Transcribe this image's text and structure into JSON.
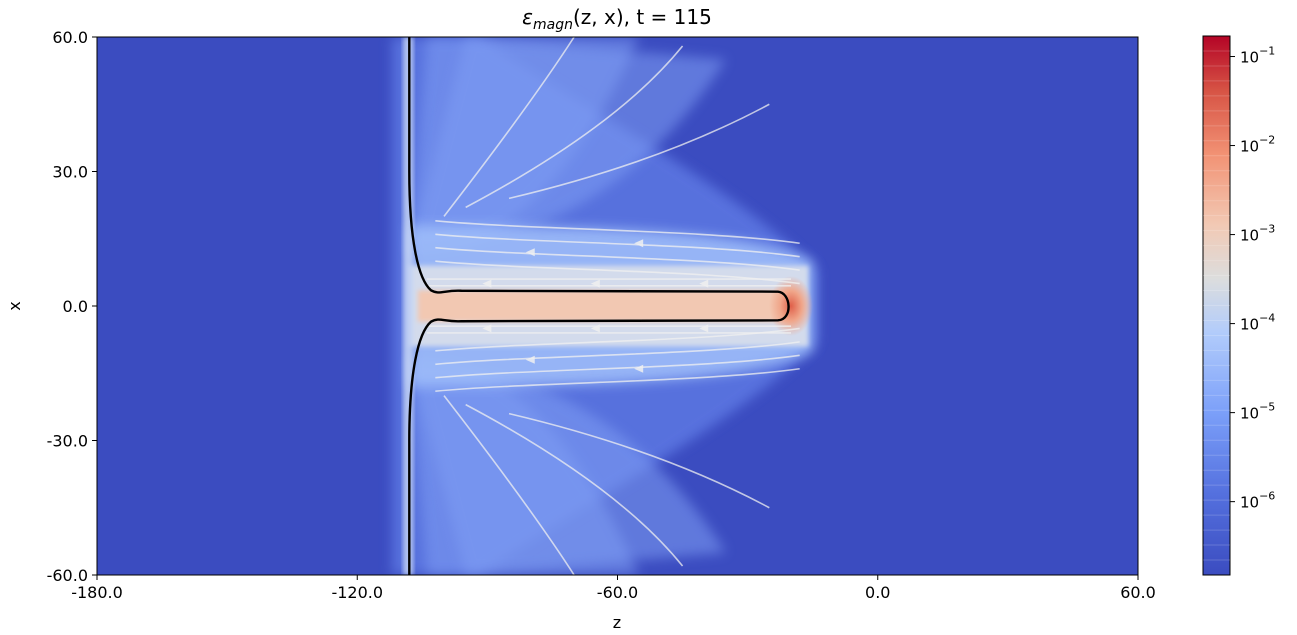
{
  "chart_data": {
    "type": "heatmap",
    "title_parts": {
      "symbol": "ε",
      "subscript": "magn",
      "args": "(z, x), t = 115"
    },
    "xlabel": "z",
    "ylabel": "x",
    "xlim": [
      -180,
      60
    ],
    "ylim": [
      -60,
      60
    ],
    "xticks": [
      -180,
      -120,
      -60,
      0,
      60
    ],
    "xtick_labels": [
      "-180.0",
      "-120.0",
      "-60.0",
      "0.0",
      "60.0"
    ],
    "yticks": [
      -60,
      -30,
      0,
      30,
      60
    ],
    "ytick_labels": [
      "-60.0",
      "-30.0",
      "0.0",
      "30.0",
      "60.0"
    ],
    "colormap": "coolwarm",
    "colorbar": {
      "scale": "log",
      "range": [
        1.5e-07,
        0.17
      ],
      "ticks": [
        1e-06,
        1e-05,
        0.0001,
        0.001,
        0.01,
        0.1
      ],
      "tick_base": "10",
      "tick_exponents": [
        "−6",
        "−5",
        "−4",
        "−3",
        "−2",
        "−1"
      ]
    },
    "features": {
      "background_level": 1.5e-07,
      "jet_axis_level": 0.0008,
      "jet_head_z": -20,
      "jet_head_peak": 0.05,
      "jet_core_halfwidth_x": 3.5,
      "cocoon_extent_z": [
        -108,
        -15
      ],
      "contact_boundary_z": -108,
      "streamlines_color": "#f0f0f0",
      "contour_color": "#000000"
    }
  }
}
